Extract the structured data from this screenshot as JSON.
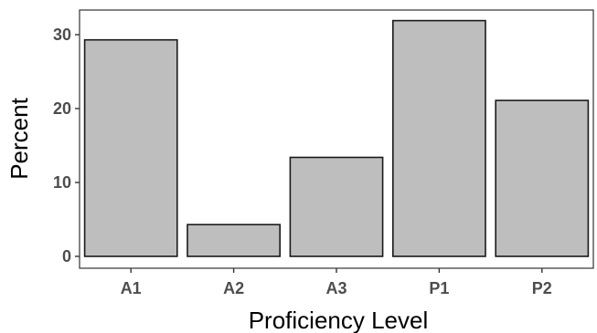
{
  "chart_data": {
    "type": "bar",
    "title": "",
    "xlabel": "Proficiency Level",
    "ylabel": "Percent",
    "categories": [
      "A1",
      "A2",
      "A3",
      "P1",
      "P2"
    ],
    "values": [
      29.3,
      4.3,
      13.4,
      31.9,
      21.1
    ],
    "ylim": [
      0,
      33.4
    ],
    "yticks": [
      0,
      10,
      20,
      30
    ],
    "grid": false,
    "legend": "none",
    "colors": {
      "bar_fill": "#bebebe",
      "bar_stroke": "#1a1a1a",
      "panel_border": "#333333"
    }
  }
}
